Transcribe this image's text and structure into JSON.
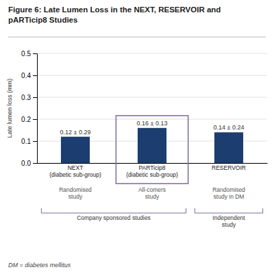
{
  "chart_data": {
    "type": "bar",
    "title": "Figure 6: Late Lumen Loss in the NEXT, RESERVOIR and\npARTicip8 Studies",
    "categories": [
      "NEXT\n(diabetic sub-group)",
      "PARTicip8\n(diabetic sub-group)",
      "RESERVOIR"
    ],
    "values": [
      0.12,
      0.16,
      0.14
    ],
    "value_labels": [
      "0.12 ± 0.29",
      "0.16 ± 0.13",
      "0.14 ± 0.24"
    ],
    "data_labels": true,
    "color": "#1b3d6f",
    "ylabel": "Late lumen loss (mm)",
    "ylim": [
      0,
      0.5
    ],
    "yticks": [
      {
        "value": 0,
        "label": "0.0"
      },
      0.1,
      0.2,
      0.3,
      0.4,
      0.5
    ],
    "grid": true,
    "category_notes": [
      "Randomised\nstudy",
      "All-comers\nstudy",
      "Randomised\nstudy in DM"
    ],
    "groups": [
      {
        "label": "Company sponsored studies",
        "color": "#7b6b9e",
        "categories": [
          "NEXT\n(diabetic sub-group)",
          "PARTicip8\n(diabetic sub-group)"
        ]
      },
      {
        "label": "Independent\nstudy",
        "color": "#7b6b9e",
        "categories": [
          "RESERVOIR"
        ]
      }
    ],
    "highlight": {
      "category": "PARTicip8\n(diabetic sub-group)",
      "color": "#7b6b9e"
    },
    "footnote": "DM = diabetes mellitus"
  }
}
